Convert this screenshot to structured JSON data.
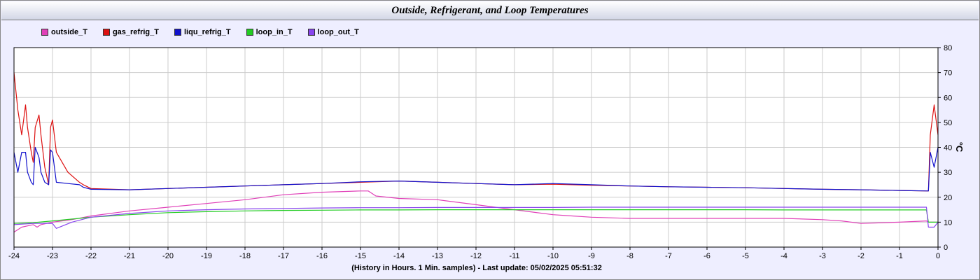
{
  "chart_data": {
    "type": "line",
    "title": "Outside, Refrigerant, and Loop Temperatures",
    "xlabel": "(History in Hours. 1 Min. samples) - Last update: 05/02/2025 05:51:32",
    "ylabel": "°C",
    "xlim": [
      -24,
      0
    ],
    "ylim": [
      0,
      80
    ],
    "x_ticks": [
      -24,
      -23,
      -22,
      -21,
      -20,
      -19,
      -18,
      -17,
      -16,
      -15,
      -14,
      -13,
      -12,
      -11,
      -10,
      -9,
      -8,
      -7,
      -6,
      -5,
      -4,
      -3,
      -2,
      -1,
      0
    ],
    "y_ticks": [
      0,
      10,
      20,
      30,
      40,
      50,
      60,
      70,
      80
    ],
    "grid": true,
    "legend_position": "top-left",
    "series": [
      {
        "name": "outside_T",
        "color": "#e040b8",
        "x": [
          -24,
          -23.8,
          -23.5,
          -23.4,
          -23.3,
          -23,
          -22.5,
          -22,
          -21,
          -20,
          -19,
          -18,
          -17,
          -16,
          -15,
          -14.8,
          -14.6,
          -14,
          -13,
          -12,
          -11,
          -10,
          -9.5,
          -9,
          -8,
          -7,
          -6,
          -5,
          -4,
          -3,
          -2.5,
          -2,
          -1,
          -0.3,
          -0.25,
          0
        ],
        "y": [
          6,
          8,
          9,
          8,
          9,
          10,
          11,
          12.5,
          14.5,
          16,
          17.5,
          19,
          21,
          22,
          22.5,
          22.5,
          20.5,
          19.5,
          19,
          17,
          15,
          13,
          12.5,
          12,
          11.5,
          11.5,
          11.5,
          11.5,
          11.5,
          11,
          10.5,
          9.5,
          10,
          10.5,
          10,
          10
        ]
      },
      {
        "name": "gas_refrig_T",
        "color": "#dd1111",
        "x": [
          -24,
          -23.9,
          -23.8,
          -23.7,
          -23.65,
          -23.55,
          -23.5,
          -23.45,
          -23.35,
          -23.3,
          -23.2,
          -23.1,
          -23.05,
          -23,
          -22.9,
          -22.6,
          -22.3,
          -22.2,
          -22,
          -21,
          -20,
          -19,
          -18,
          -17,
          -16,
          -15,
          -14,
          -13,
          -12,
          -11,
          -10,
          -9,
          -8,
          -7,
          -6,
          -5,
          -4,
          -3,
          -2,
          -1,
          -0.25,
          -0.2,
          -0.1,
          0
        ],
        "y": [
          70,
          55,
          45,
          57,
          48,
          38,
          34,
          48,
          53,
          45,
          32,
          25,
          48,
          51,
          38,
          30,
          26,
          25,
          23.5,
          23,
          23.5,
          24,
          24.5,
          25,
          25.5,
          26,
          26.5,
          26,
          25.5,
          25,
          25.2,
          24.8,
          24.5,
          24.2,
          24,
          23.8,
          23.5,
          23.2,
          23,
          22.7,
          22.5,
          45,
          57,
          45
        ]
      },
      {
        "name": "liqu_refrig_T",
        "color": "#1111cc",
        "x": [
          -24,
          -23.9,
          -23.8,
          -23.7,
          -23.65,
          -23.55,
          -23.5,
          -23.45,
          -23.35,
          -23.3,
          -23.2,
          -23.1,
          -23.05,
          -23,
          -22.9,
          -22.6,
          -22.3,
          -22.2,
          -22,
          -21,
          -20,
          -19,
          -18,
          -17,
          -16,
          -15,
          -14,
          -13,
          -12,
          -11,
          -10,
          -9,
          -8,
          -7,
          -6,
          -5,
          -4,
          -3,
          -2,
          -1,
          -0.25,
          -0.2,
          -0.1,
          0
        ],
        "y": [
          38,
          30,
          38,
          38,
          30,
          26,
          25,
          40,
          36,
          30,
          26,
          25,
          39,
          38,
          26,
          25.5,
          25,
          24,
          23.2,
          23,
          23.5,
          24,
          24.5,
          25,
          25.5,
          26.2,
          26.5,
          26,
          25.5,
          25,
          25.5,
          25,
          24.5,
          24.2,
          24,
          23.8,
          23.5,
          23.2,
          23,
          22.7,
          22.5,
          38,
          32,
          40
        ]
      },
      {
        "name": "loop_in_T",
        "color": "#22cc22",
        "x": [
          -24,
          -23.5,
          -23,
          -22,
          -21,
          -20,
          -19,
          -18,
          -17,
          -16,
          -15,
          -14,
          -13,
          -12,
          -11,
          -10,
          -9,
          -8,
          -7,
          -6,
          -5,
          -4,
          -3,
          -2,
          -1,
          -0.3,
          -0.25,
          0
        ],
        "y": [
          9.5,
          9.8,
          10.5,
          12,
          13,
          13.8,
          14.2,
          14.5,
          14.7,
          14.8,
          14.9,
          14.9,
          15,
          15,
          15,
          15,
          15,
          15,
          15,
          15,
          15,
          14.9,
          14.9,
          14.9,
          14.9,
          14.9,
          10,
          10
        ]
      },
      {
        "name": "loop_out_T",
        "color": "#8844ee",
        "x": [
          -24,
          -23.5,
          -23,
          -22.9,
          -22.5,
          -22,
          -21,
          -20,
          -19,
          -18,
          -17,
          -16,
          -15,
          -14,
          -13,
          -12,
          -11,
          -10,
          -9,
          -8,
          -7,
          -6,
          -5,
          -4,
          -3,
          -2,
          -1,
          -0.3,
          -0.25,
          -0.1,
          0
        ],
        "y": [
          9,
          9.5,
          9.5,
          7.5,
          10,
          12,
          13.5,
          14.5,
          15,
          15.3,
          15.5,
          15.7,
          15.8,
          15.8,
          15.9,
          15.9,
          15.9,
          15.9,
          16,
          16,
          16,
          16,
          16,
          16,
          16,
          16,
          16,
          16,
          8,
          8,
          10
        ]
      }
    ]
  }
}
